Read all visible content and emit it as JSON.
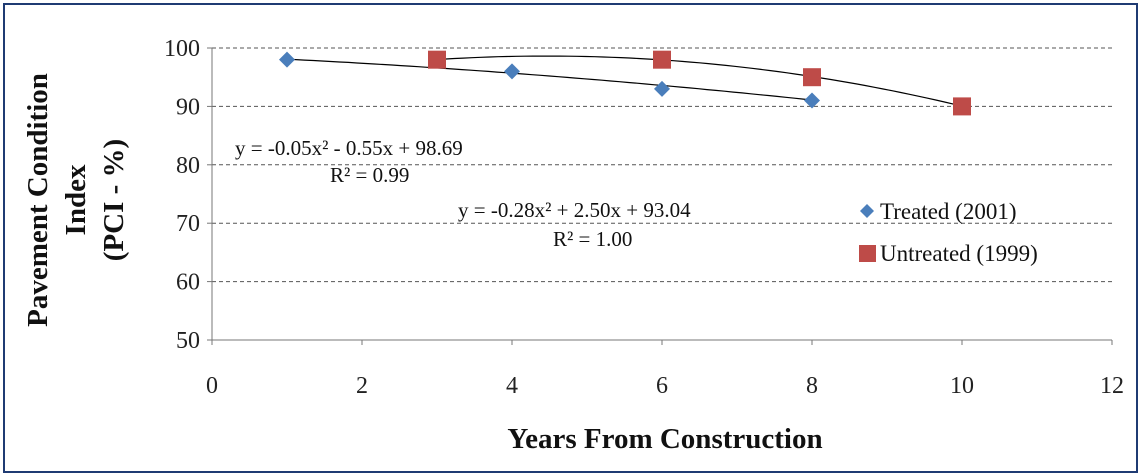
{
  "chart_data": {
    "type": "scatter",
    "xlabel": "Years From Construction",
    "ylabel_lines": [
      "Pavement Condition",
      "Index",
      "(PCI - %)"
    ],
    "xlim": [
      0,
      12
    ],
    "ylim": [
      50,
      100
    ],
    "xticks": [
      "0",
      "2",
      "4",
      "6",
      "8",
      "10",
      "12"
    ],
    "yticks": [
      "50",
      "60",
      "70",
      "80",
      "90",
      "100"
    ],
    "x_tick_values": [
      0,
      2,
      4,
      6,
      8,
      10,
      12
    ],
    "y_tick_values": [
      50,
      60,
      70,
      80,
      90,
      100
    ],
    "grid": "horizontal dashed",
    "legend_position": "right",
    "series": [
      {
        "name": "Treated (2001)",
        "marker": "diamond",
        "color": "#4a7ebb",
        "x": [
          1,
          4,
          6,
          8
        ],
        "y": [
          98,
          96,
          93,
          91
        ],
        "trendline": {
          "a": -0.05,
          "b": -0.55,
          "c": 98.69,
          "x_range": [
            1,
            8
          ]
        }
      },
      {
        "name": "Untreated (1999)",
        "marker": "square",
        "color": "#be4b48",
        "x": [
          3,
          6,
          8,
          10
        ],
        "y": [
          98,
          98,
          95,
          90
        ],
        "trendline": {
          "a": -0.28,
          "b": 2.5,
          "c": 93.04,
          "x_range": [
            3,
            10
          ]
        }
      }
    ],
    "annotations": {
      "treated_equation": "y = -0.05x² - 0.55x + 98.69",
      "treated_r2": "R² = 0.99",
      "untreated_equation": "y = -0.28x² + 2.50x + 93.04",
      "untreated_r2": "R² = 1.00"
    }
  }
}
